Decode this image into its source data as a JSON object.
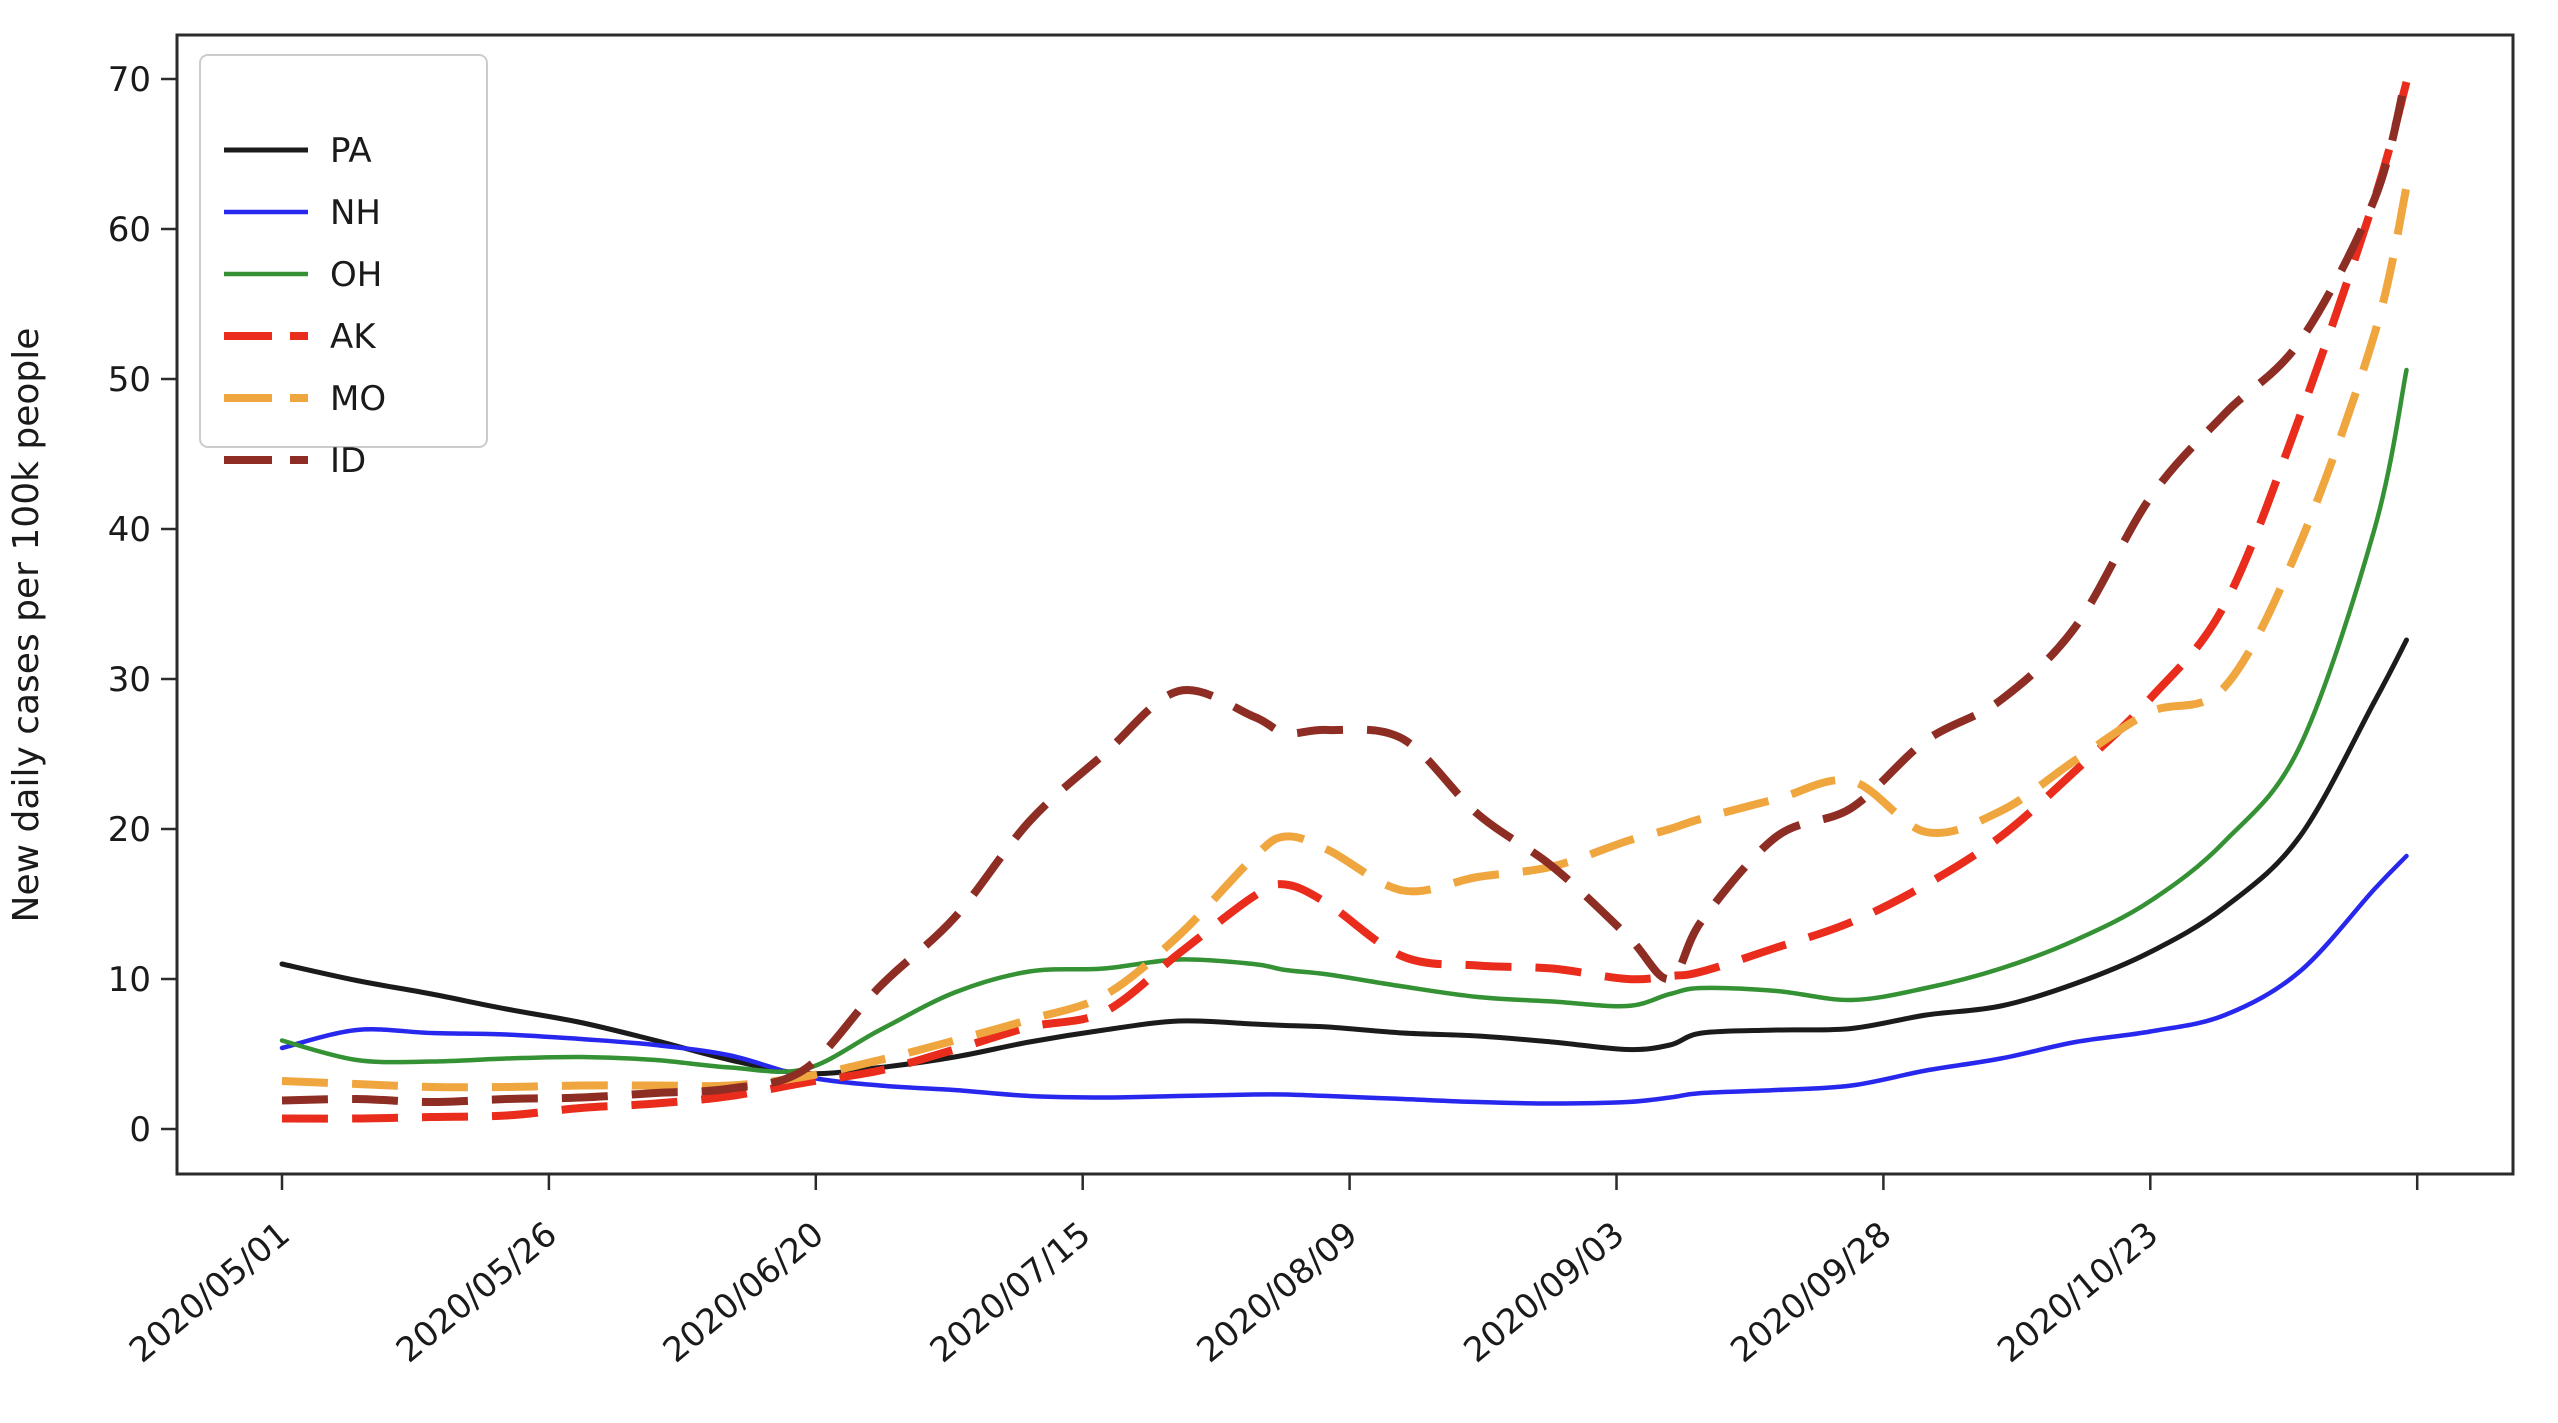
{
  "chart_data": {
    "type": "line",
    "title": "",
    "xlabel": "",
    "ylabel": "New daily cases per 100k people",
    "grid": false,
    "legend_position": "upper-left",
    "axis_color": "#2b2b2b",
    "tick_label_color": "#1a1a1a",
    "ylim": [
      -3,
      73
    ],
    "y_ticks": [
      0,
      10,
      20,
      30,
      40,
      50,
      60,
      70
    ],
    "x_ticks": [
      {
        "date": "2020/05/01",
        "label": "2020/05/01"
      },
      {
        "date": "2020/05/26",
        "label": "2020/05/26"
      },
      {
        "date": "2020/06/20",
        "label": "2020/06/20"
      },
      {
        "date": "2020/07/15",
        "label": "2020/07/15"
      },
      {
        "date": "2020/08/09",
        "label": "2020/08/09"
      },
      {
        "date": "2020/09/03",
        "label": "2020/09/03"
      },
      {
        "date": "2020/09/28",
        "label": "2020/09/28"
      },
      {
        "date": "2020/10/23",
        "label": "2020/10/23"
      },
      {
        "date": "2020/11/17",
        "label": ""
      }
    ],
    "x": [
      "2020/05/01",
      "2020/05/08",
      "2020/05/15",
      "2020/05/22",
      "2020/05/29",
      "2020/06/05",
      "2020/06/12",
      "2020/06/19",
      "2020/06/26",
      "2020/07/03",
      "2020/07/10",
      "2020/07/17",
      "2020/07/24",
      "2020/07/31",
      "2020/08/03",
      "2020/08/07",
      "2020/08/14",
      "2020/08/21",
      "2020/08/28",
      "2020/09/04",
      "2020/09/08",
      "2020/09/11",
      "2020/09/18",
      "2020/09/25",
      "2020/10/02",
      "2020/10/09",
      "2020/10/16",
      "2020/10/23",
      "2020/10/30",
      "2020/11/06",
      "2020/11/13",
      "2020/11/16"
    ],
    "series": [
      {
        "name": "PA",
        "color": "#1b1b1b",
        "style": "solid",
        "width": 5,
        "values": [
          11.0,
          9.9,
          9.0,
          8.0,
          7.1,
          5.9,
          4.6,
          3.7,
          4.1,
          4.8,
          5.8,
          6.6,
          7.2,
          7.0,
          6.9,
          6.8,
          6.4,
          6.2,
          5.8,
          5.3,
          5.6,
          6.4,
          6.6,
          6.7,
          7.6,
          8.2,
          9.7,
          11.8,
          14.8,
          19.5,
          28.5,
          32.6
        ]
      },
      {
        "name": "NH",
        "color": "#2727ee",
        "style": "solid",
        "width": 4.5,
        "values": [
          5.4,
          6.6,
          6.4,
          6.3,
          6.0,
          5.6,
          4.9,
          3.5,
          2.9,
          2.6,
          2.2,
          2.1,
          2.2,
          2.3,
          2.3,
          2.2,
          2.0,
          1.8,
          1.7,
          1.8,
          2.1,
          2.4,
          2.6,
          2.9,
          3.9,
          4.7,
          5.8,
          6.5,
          7.6,
          10.5,
          16.0,
          18.2
        ]
      },
      {
        "name": "OH",
        "color": "#349134",
        "style": "solid",
        "width": 4.5,
        "values": [
          5.9,
          4.6,
          4.5,
          4.7,
          4.8,
          4.6,
          4.1,
          4.0,
          6.6,
          9.1,
          10.5,
          10.7,
          11.3,
          11.0,
          10.6,
          10.3,
          9.5,
          8.8,
          8.5,
          8.2,
          9.0,
          9.4,
          9.2,
          8.6,
          9.4,
          10.7,
          12.6,
          15.2,
          19.2,
          25.5,
          40.0,
          50.6
        ]
      },
      {
        "name": "AK",
        "color": "#e92c1c",
        "style": "dashed",
        "width": 8,
        "values": [
          0.7,
          0.7,
          0.8,
          0.9,
          1.4,
          1.7,
          2.2,
          3.1,
          3.9,
          5.3,
          6.8,
          7.8,
          11.7,
          15.5,
          16.3,
          15.0,
          11.5,
          10.9,
          10.7,
          10.0,
          10.2,
          10.5,
          12.1,
          13.8,
          16.3,
          19.5,
          23.9,
          28.7,
          35.0,
          47.5,
          62.0,
          69.8
        ]
      },
      {
        "name": "MO",
        "color": "#f0a63e",
        "style": "dashed",
        "width": 8,
        "values": [
          3.2,
          3.0,
          2.8,
          2.8,
          2.9,
          2.9,
          2.9,
          3.5,
          4.6,
          5.9,
          7.3,
          8.9,
          12.9,
          18.1,
          19.5,
          18.6,
          15.9,
          16.8,
          17.5,
          19.2,
          20.0,
          20.7,
          22.0,
          23.2,
          19.8,
          21.2,
          24.6,
          27.8,
          29.5,
          39.0,
          53.0,
          62.8
        ]
      },
      {
        "name": "ID",
        "color": "#8e2d24",
        "style": "dashed",
        "width": 8,
        "values": [
          1.9,
          2.0,
          1.8,
          2.0,
          2.1,
          2.4,
          2.7,
          4.0,
          9.5,
          14.1,
          20.5,
          25.0,
          29.2,
          27.5,
          26.4,
          26.6,
          26.0,
          21.0,
          17.5,
          12.9,
          10.0,
          13.9,
          19.5,
          21.4,
          25.9,
          28.6,
          33.5,
          42.1,
          47.7,
          52.5,
          62.0,
          70.3
        ]
      }
    ]
  }
}
